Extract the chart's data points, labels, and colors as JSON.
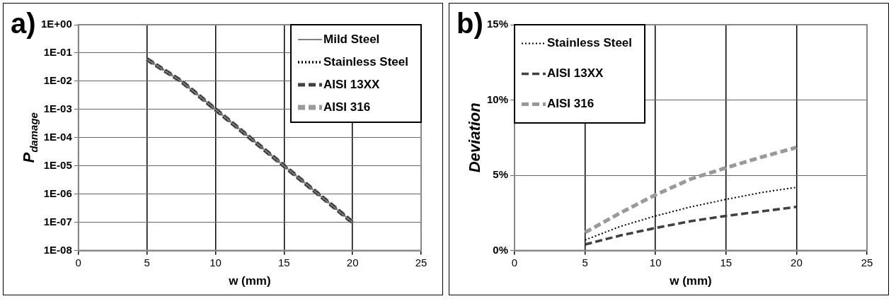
{
  "chart_data": [
    {
      "type": "line",
      "title": "a)",
      "xlabel": "w (mm)",
      "ylabel": "P$_{damage}$",
      "log": "y",
      "x": [
        5,
        7.5,
        10,
        12.5,
        15,
        17.5,
        20
      ],
      "series": [
        {
          "name": "Mild Steel",
          "color": "#808080",
          "line_style": "solid",
          "values": [
            0.06,
            0.01,
            0.001,
            0.0001,
            1e-05,
            1e-06,
            1e-07
          ]
        },
        {
          "name": "Stainless Steel",
          "color": "#000000",
          "line_style": "dotted",
          "values": [
            0.06,
            0.01,
            0.001,
            0.0001,
            1e-05,
            1e-06,
            1e-07
          ]
        },
        {
          "name": "AISI 13XX",
          "color": "#404040",
          "line_style": "dashed",
          "values": [
            0.06,
            0.01,
            0.001,
            0.0001,
            1e-05,
            1e-06,
            1e-07
          ]
        },
        {
          "name": "AISI 316",
          "color": "#999999",
          "line_style": "dashed",
          "values": [
            0.06,
            0.01,
            0.001,
            0.0001,
            1e-05,
            1e-06,
            1e-07
          ]
        }
      ],
      "xlim": [
        0,
        25
      ],
      "xticks": [
        0,
        5,
        10,
        15,
        20,
        25
      ],
      "ylim": [
        1e-08,
        1
      ],
      "yticks": [
        {
          "value": 1e-08,
          "label": "1E-08"
        },
        {
          "value": 1e-07,
          "label": "1E-07"
        },
        {
          "value": 1e-06,
          "label": "1E-06"
        },
        {
          "value": 1e-05,
          "label": "1E-05"
        },
        {
          "value": 0.0001,
          "label": "1E-04"
        },
        {
          "value": 0.001,
          "label": "1E-03"
        },
        {
          "value": 0.01,
          "label": "1E-02"
        },
        {
          "value": 0.1,
          "label": "1E-01"
        },
        {
          "value": 1,
          "label": "1E+00"
        }
      ],
      "grid": true,
      "legend": "top right",
      "marker": "none"
    },
    {
      "type": "line",
      "title": "b)",
      "xlabel": "w (mm)",
      "ylabel": "Deviation",
      "x": [
        5,
        7.5,
        10,
        12.5,
        15,
        17.5,
        20
      ],
      "series": [
        {
          "name": "Stainless Steel",
          "color": "#000000",
          "line_style": "dotted",
          "values": [
            0.7,
            1.6,
            2.3,
            2.9,
            3.4,
            3.85,
            4.2
          ]
        },
        {
          "name": "AISI 13XX",
          "color": "#404040",
          "line_style": "dashed",
          "values": [
            0.4,
            1.0,
            1.5,
            1.95,
            2.3,
            2.6,
            2.9
          ]
        },
        {
          "name": "AISI 316",
          "color": "#999999",
          "line_style": "dashed",
          "values": [
            1.2,
            2.5,
            3.7,
            4.75,
            5.5,
            6.2,
            6.85
          ]
        }
      ],
      "xlim": [
        0,
        25
      ],
      "xticks": [
        0,
        5,
        10,
        15,
        20,
        25
      ],
      "ylim": [
        0,
        15
      ],
      "yticks": [
        {
          "value": 0,
          "label": "0%"
        },
        {
          "value": 5,
          "label": "5%"
        },
        {
          "value": 10,
          "label": "10%"
        },
        {
          "value": 15,
          "label": "15%"
        }
      ],
      "grid": true,
      "legend": "top left",
      "marker": "none"
    }
  ]
}
